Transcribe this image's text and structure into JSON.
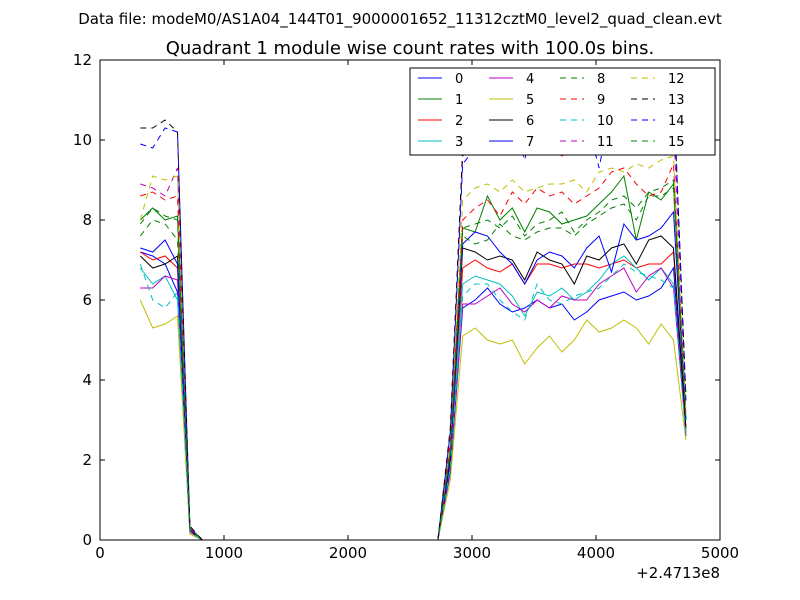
{
  "chart_data": {
    "type": "line",
    "supertitle": "Data file: modeM0/AS1A04_144T01_9000001652_11312cztM0_level2_quad_clean.evt",
    "title": "Quadrant 1 module wise count rates with 100.0s bins.",
    "xlabel": "",
    "ylabel": "",
    "xlim": [
      0,
      5000
    ],
    "ylim": [
      0,
      12
    ],
    "x_offset_label": "+2.4713e8",
    "x_ticks": [
      "0",
      "1000",
      "2000",
      "3000",
      "4000",
      "5000"
    ],
    "y_ticks": [
      "0",
      "2",
      "4",
      "6",
      "8",
      "10",
      "12"
    ],
    "grid": false,
    "legend_position": "top-right",
    "x": [
      325,
      425,
      525,
      625,
      725,
      825,
      925,
      1025,
      1125,
      1225,
      1325,
      1425,
      1525,
      1625,
      1725,
      1825,
      1925,
      2025,
      2125,
      2225,
      2325,
      2425,
      2525,
      2625,
      2725,
      2825,
      2925,
      3025,
      3125,
      3225,
      3325,
      3425,
      3525,
      3625,
      3725,
      3825,
      3925,
      4025,
      4125,
      4225,
      4325,
      4425,
      4525,
      4625,
      4725
    ],
    "series": [
      {
        "name": "0",
        "color": "#0000ff",
        "dash": "solid",
        "values": [
          7.2,
          7.1,
          6.9,
          6.2,
          0.2,
          0,
          0,
          0,
          0,
          0,
          0,
          0,
          0,
          0,
          0,
          0,
          0,
          0,
          0,
          0,
          0,
          0,
          0,
          0,
          0,
          1.7,
          5.8,
          6.0,
          6.3,
          5.9,
          5.7,
          5.8,
          6.0,
          5.8,
          5.9,
          5.5,
          5.7,
          6.0,
          6.1,
          6.2,
          6.0,
          6.1,
          6.3,
          6.8,
          2.6
        ]
      },
      {
        "name": "1",
        "color": "#008000",
        "dash": "solid",
        "values": [
          8.0,
          8.3,
          8.0,
          8.1,
          0.3,
          0,
          0,
          0,
          0,
          0,
          0,
          0,
          0,
          0,
          0,
          0,
          0,
          0,
          0,
          0,
          0,
          0,
          0,
          0,
          0,
          2.3,
          7.8,
          7.7,
          8.6,
          8.0,
          8.3,
          7.7,
          8.3,
          8.2,
          7.9,
          8.0,
          8.1,
          8.4,
          8.7,
          9.1,
          7.5,
          8.7,
          8.5,
          8.9,
          3.0
        ]
      },
      {
        "name": "2",
        "color": "#ff0000",
        "dash": "solid",
        "values": [
          7.2,
          7.0,
          7.1,
          6.8,
          0.25,
          0,
          0,
          0,
          0,
          0,
          0,
          0,
          0,
          0,
          0,
          0,
          0,
          0,
          0,
          0,
          0,
          0,
          0,
          0,
          0,
          2.0,
          6.8,
          7.0,
          6.8,
          6.7,
          6.9,
          6.4,
          6.9,
          6.9,
          6.8,
          6.9,
          6.9,
          6.8,
          6.9,
          7.0,
          6.8,
          6.9,
          6.9,
          7.2,
          2.8
        ]
      },
      {
        "name": "3",
        "color": "#00bfbf",
        "dash": "solid",
        "values": [
          6.8,
          6.4,
          6.6,
          6.0,
          0.2,
          0,
          0,
          0,
          0,
          0,
          0,
          0,
          0,
          0,
          0,
          0,
          0,
          0,
          0,
          0,
          0,
          0,
          0,
          0,
          0,
          1.9,
          6.4,
          6.6,
          6.5,
          6.4,
          6.1,
          5.6,
          6.2,
          6.1,
          6.3,
          6.0,
          6.2,
          6.5,
          6.9,
          7.1,
          6.8,
          6.5,
          6.8,
          6.4,
          2.7
        ]
      },
      {
        "name": "4",
        "color": "#bf00bf",
        "dash": "solid",
        "values": [
          6.3,
          6.3,
          6.6,
          6.5,
          0.2,
          0,
          0,
          0,
          0,
          0,
          0,
          0,
          0,
          0,
          0,
          0,
          0,
          0,
          0,
          0,
          0,
          0,
          0,
          0,
          0,
          1.8,
          5.9,
          5.9,
          6.1,
          6.3,
          5.9,
          5.7,
          6.0,
          5.8,
          6.1,
          6.0,
          6.0,
          6.4,
          6.6,
          6.8,
          6.2,
          6.6,
          6.8,
          6.3,
          2.7
        ]
      },
      {
        "name": "5",
        "color": "#bfbf00",
        "dash": "solid",
        "values": [
          6.0,
          5.3,
          5.4,
          5.6,
          0.15,
          0,
          0,
          0,
          0,
          0,
          0,
          0,
          0,
          0,
          0,
          0,
          0,
          0,
          0,
          0,
          0,
          0,
          0,
          0,
          0,
          1.5,
          5.1,
          5.3,
          5.0,
          4.9,
          5.0,
          4.4,
          4.8,
          5.1,
          4.7,
          5.0,
          5.5,
          5.2,
          5.3,
          5.5,
          5.3,
          4.9,
          5.4,
          5.0,
          2.5
        ]
      },
      {
        "name": "6",
        "color": "#000000",
        "dash": "solid",
        "values": [
          7.1,
          6.8,
          6.9,
          7.1,
          0.25,
          0,
          0,
          0,
          0,
          0,
          0,
          0,
          0,
          0,
          0,
          0,
          0,
          0,
          0,
          0,
          0,
          0,
          0,
          0,
          0,
          2.0,
          7.3,
          7.2,
          7.0,
          7.1,
          7.0,
          6.5,
          7.2,
          7.0,
          6.9,
          6.4,
          7.1,
          7.0,
          7.3,
          7.4,
          6.9,
          7.5,
          7.6,
          7.3,
          2.8
        ]
      },
      {
        "name": "7",
        "color": "#0000ff",
        "dash": "solid",
        "values": [
          7.3,
          7.2,
          7.5,
          6.9,
          0.3,
          0,
          0,
          0,
          0,
          0,
          0,
          0,
          0,
          0,
          0,
          0,
          0,
          0,
          0,
          0,
          0,
          0,
          0,
          0,
          0,
          2.1,
          7.4,
          7.7,
          7.6,
          7.2,
          6.9,
          6.4,
          7.0,
          7.2,
          7.1,
          6.8,
          7.3,
          7.6,
          6.7,
          7.9,
          7.5,
          7.6,
          7.8,
          8.2,
          3.0
        ]
      },
      {
        "name": "8",
        "color": "#008000",
        "dash": "dashed",
        "values": [
          7.6,
          8.0,
          7.9,
          7.5,
          0.3,
          0,
          0,
          0,
          0,
          0,
          0,
          0,
          0,
          0,
          0,
          0,
          0,
          0,
          0,
          0,
          0,
          0,
          0,
          0,
          0,
          2.2,
          7.6,
          7.4,
          7.5,
          7.9,
          7.6,
          7.5,
          7.7,
          7.8,
          7.8,
          7.6,
          7.9,
          8.1,
          8.3,
          8.4,
          8.0,
          8.6,
          8.6,
          8.8,
          3.0
        ]
      },
      {
        "name": "9",
        "color": "#ff0000",
        "dash": "dashed",
        "values": [
          8.6,
          8.7,
          8.5,
          8.6,
          0.3,
          0,
          0,
          0,
          0,
          0,
          0,
          0,
          0,
          0,
          0,
          0,
          0,
          0,
          0,
          0,
          0,
          0,
          0,
          0,
          0,
          2.4,
          8.0,
          8.3,
          8.5,
          8.1,
          8.7,
          8.4,
          8.8,
          8.6,
          8.7,
          8.4,
          8.6,
          8.8,
          9.2,
          9.3,
          8.9,
          8.6,
          8.7,
          9.4,
          3.1
        ]
      },
      {
        "name": "10",
        "color": "#00bfbf",
        "dash": "dashed",
        "values": [
          6.9,
          6.0,
          5.8,
          6.2,
          0.2,
          0,
          0,
          0,
          0,
          0,
          0,
          0,
          0,
          0,
          0,
          0,
          0,
          0,
          0,
          0,
          0,
          0,
          0,
          0,
          0,
          1.8,
          6.1,
          6.4,
          6.4,
          6.0,
          5.7,
          5.5,
          6.4,
          6.0,
          5.9,
          6.1,
          6.2,
          6.3,
          6.6,
          6.9,
          6.7,
          6.6,
          6.5,
          6.3,
          2.6
        ]
      },
      {
        "name": "11",
        "color": "#bf00bf",
        "dash": "dashed",
        "values": [
          8.9,
          8.8,
          8.6,
          9.3,
          0.3,
          0,
          0,
          0,
          0,
          0,
          0,
          0,
          0,
          0,
          0,
          0,
          0,
          0,
          0,
          0,
          0,
          0,
          0,
          0,
          0,
          2.6,
          9.6,
          9.8,
          10.0,
          9.9,
          10.1,
          9.7,
          10.0,
          9.9,
          9.6,
          9.8,
          9.9,
          10.2,
          10.1,
          10.3,
          10.0,
          10.1,
          10.2,
          10.4,
          3.4
        ]
      },
      {
        "name": "12",
        "color": "#bfbf00",
        "dash": "dashed",
        "values": [
          8.0,
          9.1,
          9.0,
          9.1,
          0.3,
          0,
          0,
          0,
          0,
          0,
          0,
          0,
          0,
          0,
          0,
          0,
          0,
          0,
          0,
          0,
          0,
          0,
          0,
          0,
          0,
          2.4,
          8.5,
          8.8,
          8.9,
          8.7,
          9.0,
          8.7,
          8.8,
          8.9,
          8.9,
          9.0,
          8.7,
          9.2,
          9.3,
          9.2,
          9.4,
          9.3,
          9.5,
          9.6,
          3.2
        ]
      },
      {
        "name": "13",
        "color": "#000000",
        "dash": "dashed",
        "values": [
          10.3,
          10.3,
          10.5,
          10.2,
          0.35,
          0,
          0,
          0,
          0,
          0,
          0,
          0,
          0,
          0,
          0,
          0,
          0,
          0,
          0,
          0,
          0,
          0,
          0,
          0,
          0,
          2.8,
          9.8,
          10.3,
          10.7,
          10.5,
          10.4,
          10.1,
          10.6,
          10.5,
          10.4,
          10.2,
          10.5,
          10.7,
          10.8,
          10.6,
          10.7,
          10.5,
          10.6,
          11.2,
          3.6
        ]
      },
      {
        "name": "14",
        "color": "#0000ff",
        "dash": "dashed",
        "values": [
          9.9,
          9.8,
          10.3,
          10.2,
          0.3,
          0,
          0,
          0,
          0,
          0,
          0,
          0,
          0,
          0,
          0,
          0,
          0,
          0,
          0,
          0,
          0,
          0,
          0,
          0,
          0,
          2.7,
          9.4,
          9.8,
          11.0,
          10.8,
          10.5,
          9.5,
          11.1,
          10.9,
          10.2,
          10.8,
          10.5,
          9.3,
          10.9,
          10.6,
          10.5,
          10.7,
          10.3,
          11.3,
          3.5
        ]
      },
      {
        "name": "15",
        "color": "#008000",
        "dash": "dashed",
        "values": [
          7.9,
          8.3,
          8.1,
          8.0,
          0.3,
          0,
          0,
          0,
          0,
          0,
          0,
          0,
          0,
          0,
          0,
          0,
          0,
          0,
          0,
          0,
          0,
          0,
          0,
          0,
          0,
          2.2,
          7.8,
          7.9,
          8.0,
          7.8,
          8.1,
          7.6,
          7.9,
          8.0,
          8.2,
          7.7,
          8.0,
          8.2,
          8.5,
          8.6,
          8.3,
          8.7,
          8.8,
          9.0,
          3.0
        ]
      }
    ]
  }
}
